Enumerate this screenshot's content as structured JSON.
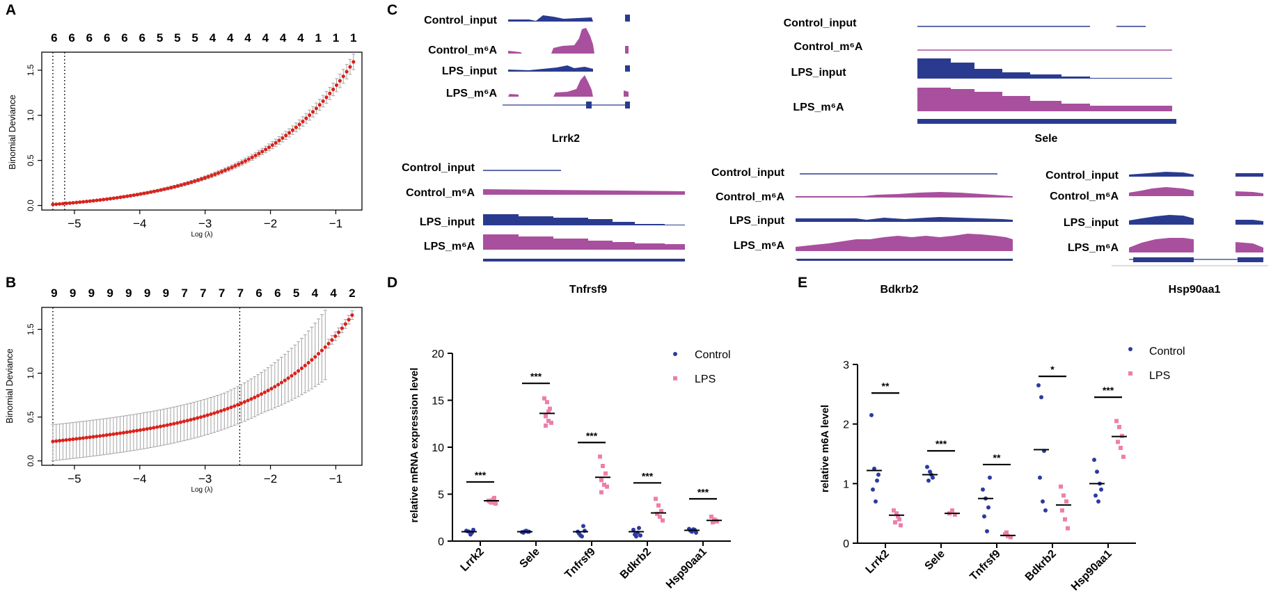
{
  "panel_labels": {
    "A": "A",
    "B": "B",
    "C": "C",
    "D": "D",
    "E": "E"
  },
  "colors": {
    "red": "#d9221c",
    "grey": "#a3a3a3",
    "blue": "#2a3b8f",
    "pink": "#a8509e",
    "lps_pink": "#ee7fa9",
    "control_blue": "#2d3aa0"
  },
  "chart_data": [
    {
      "id": "A",
      "type": "line",
      "xlabel": "Log (λ)",
      "ylabel": "Binomial Deviance",
      "xlim": [
        -5.5,
        -0.6
      ],
      "ylim": [
        -0.05,
        1.7
      ],
      "x_ticks": [
        "−5",
        "−4",
        "−3",
        "−2",
        "−1"
      ],
      "x_tick_values": [
        -5,
        -4,
        -3,
        -2,
        -1
      ],
      "y_ticks": [
        "0.0",
        "0.5",
        "1.0",
        "1.5"
      ],
      "y_tick_values": [
        0,
        0.5,
        1.0,
        1.5
      ],
      "top_counts": [
        "6",
        "6",
        "6",
        "6",
        "6",
        "6",
        "5",
        "5",
        "5",
        "4",
        "4",
        "4",
        "4",
        "4",
        "4",
        "1",
        "1",
        "1"
      ],
      "vlines": [
        -5.33,
        -5.15
      ],
      "x_range": [
        -5.33,
        -0.73
      ],
      "n_points": 90,
      "curve": {
        "y0": 0.012,
        "amp": 1.58,
        "k": 3.0
      },
      "error": {
        "base": 0.006,
        "frac": 0.05
      }
    },
    {
      "id": "B",
      "type": "line",
      "xlabel": "Log (λ)",
      "ylabel": "Binomial Deviance",
      "xlim": [
        -5.5,
        -0.6
      ],
      "ylim": [
        -0.05,
        1.75
      ],
      "x_ticks": [
        "−5",
        "−4",
        "−3",
        "−2",
        "−1"
      ],
      "x_tick_values": [
        -5,
        -4,
        -3,
        -2,
        -1
      ],
      "y_ticks": [
        "0.0",
        "0.5",
        "1.0",
        "1.5"
      ],
      "y_tick_values": [
        0,
        0.5,
        1.0,
        1.5
      ],
      "top_counts": [
        "9",
        "9",
        "9",
        "9",
        "9",
        "9",
        "9",
        "7",
        "7",
        "7",
        "7",
        "6",
        "6",
        "5",
        "4",
        "4",
        "2"
      ],
      "vlines": [
        -5.33,
        -2.47
      ],
      "x_range": [
        -5.33,
        -0.75
      ],
      "n_points": 90,
      "curve": {
        "y0": 0.222,
        "slope": 0.02,
        "amp": 1.4,
        "k": 3.3
      },
      "error": {
        "lower_frac": 0.52,
        "upper_frac": 0.72,
        "upper_min": 0.19
      }
    },
    {
      "id": "D",
      "type": "scatter",
      "title": "",
      "xlabel": "",
      "ylabel": "relative mRNA expression level",
      "ylim": [
        0,
        20
      ],
      "y_ticks": [
        "0",
        "5",
        "10",
        "15",
        "20"
      ],
      "y_tick_values": [
        0,
        5,
        10,
        15,
        20
      ],
      "categories": [
        "Lrrk2",
        "Sele",
        "Tnfrsf9",
        "Bdkrb2",
        "Hsp90aa1"
      ],
      "legend": [
        "Control",
        "LPS"
      ],
      "significance": [
        "***",
        "***",
        "***",
        "***",
        "***"
      ],
      "sig_heights": [
        6.3,
        16.8,
        10.5,
        6.2,
        4.5
      ],
      "series": [
        {
          "name": "Control",
          "values": [
            [
              1.1,
              1.0,
              0.9,
              1.05,
              0.7,
              1.2
            ],
            [
              0.95,
              1.05,
              1.0,
              0.9,
              1.1,
              1.0
            ],
            [
              1.0,
              0.6,
              1.6,
              0.8,
              0.5,
              1.1
            ],
            [
              1.2,
              0.5,
              1.4,
              0.7,
              0.9,
              0.6
            ],
            [
              1.3,
              1.0,
              1.2,
              1.1,
              1.25,
              0.9
            ]
          ],
          "means": [
            1.0,
            1.0,
            1.0,
            1.0,
            1.15
          ]
        },
        {
          "name": "LPS",
          "values": [
            [
              4.3,
              4.1,
              4.6,
              4.2,
              4.4,
              4.0
            ],
            [
              15.2,
              14.8,
              14.1,
              13.3,
              12.8,
              12.6,
              12.3,
              13.8
            ],
            [
              9.0,
              8.0,
              7.2,
              6.5,
              6.0,
              5.8,
              5.2
            ],
            [
              4.5,
              3.8,
              3.2,
              2.9,
              2.6,
              2.2
            ],
            [
              2.6,
              2.3,
              2.1,
              2.0,
              2.2
            ]
          ],
          "means": [
            4.3,
            13.6,
            6.8,
            3.0,
            2.2
          ]
        }
      ]
    },
    {
      "id": "E",
      "type": "scatter",
      "title": "",
      "xlabel": "",
      "ylabel": "relative m6A level",
      "ylim": [
        0,
        3
      ],
      "y_ticks": [
        "0",
        "1",
        "2",
        "3"
      ],
      "y_tick_values": [
        0,
        1,
        2,
        3
      ],
      "categories": [
        "Lrrk2",
        "Sele",
        "Tnfrsf9",
        "Bdkrb2",
        "Hsp90aa1"
      ],
      "legend": [
        "Control",
        "LPS"
      ],
      "significance": [
        "**",
        "***",
        "**",
        "*",
        "***"
      ],
      "sig_heights": [
        2.52,
        1.55,
        1.32,
        2.8,
        2.45
      ],
      "series": [
        {
          "name": "Control",
          "values": [
            [
              2.15,
              1.25,
              1.05,
              0.9,
              0.7,
              1.15
            ],
            [
              1.28,
              1.2,
              1.1,
              1.05,
              1.15
            ],
            [
              0.9,
              0.75,
              0.6,
              0.45,
              0.2,
              1.1
            ],
            [
              2.65,
              2.45,
              1.55,
              1.1,
              0.7,
              0.55
            ],
            [
              1.4,
              1.2,
              1.0,
              0.8,
              0.7,
              0.9
            ]
          ],
          "means": [
            1.22,
            1.15,
            0.75,
            1.57,
            1.0
          ]
        },
        {
          "name": "LPS",
          "values": [
            [
              0.55,
              0.5,
              0.4,
              0.35,
              0.45,
              0.3
            ],
            [
              0.5,
              0.55,
              0.48
            ],
            [
              0.15,
              0.12,
              0.1,
              0.18
            ],
            [
              0.95,
              0.8,
              0.7,
              0.55,
              0.4,
              0.25
            ],
            [
              2.05,
              1.95,
              1.8,
              1.7,
              1.6,
              1.45
            ]
          ],
          "means": [
            0.47,
            0.5,
            0.13,
            0.64,
            1.79
          ]
        }
      ]
    }
  ],
  "tracks": [
    {
      "gene": "Lrrk2",
      "rows": [
        "Control_input",
        "Control_m⁶A",
        "LPS_input",
        "LPS_m⁶A"
      ]
    },
    {
      "gene": "Sele",
      "rows": [
        "Control_input",
        "Control_m⁶A",
        "LPS_input",
        "LPS_m⁶A"
      ]
    },
    {
      "gene": "Tnfrsf9",
      "rows": [
        "Control_input",
        "Control_m⁶A",
        "LPS_input",
        "LPS_m⁶A"
      ]
    },
    {
      "gene": "Bdkrb2",
      "rows": [
        "Control_input",
        "Control_m⁶A",
        "LPS_input",
        "LPS_m⁶A"
      ]
    },
    {
      "gene": "Hsp90aa1",
      "rows": [
        "Control_input",
        "Control_m⁶A",
        "LPS_input",
        "LPS_m⁶A"
      ]
    }
  ]
}
